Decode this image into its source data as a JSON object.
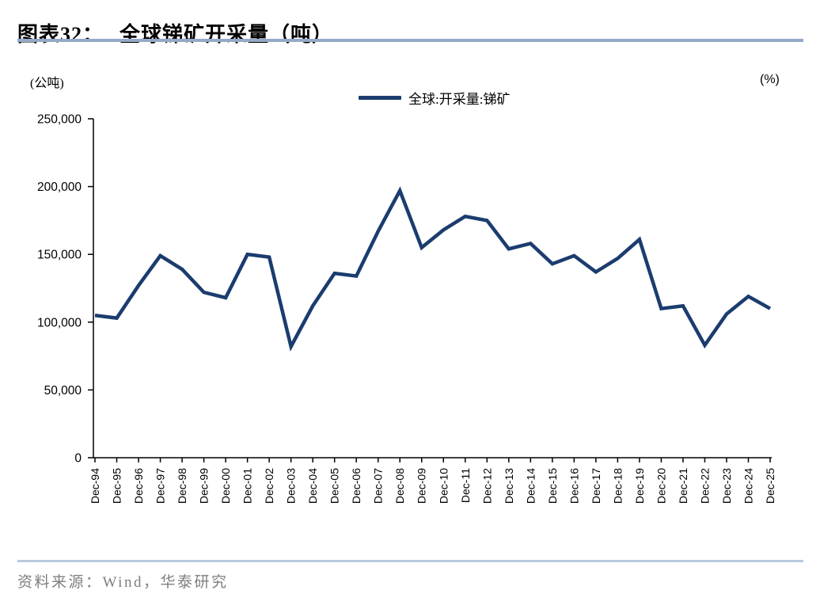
{
  "header": {
    "title_prefix": "图表32：",
    "title_text": "全球锑矿开采量（吨）"
  },
  "colors": {
    "series_line": "#1B3C6E",
    "title_rule": "#94AAC8",
    "footer_rule": "#B7C9DE",
    "source_text": "#7f7f7f"
  },
  "chart": {
    "unit_left": "(公吨)",
    "unit_right": "(%)",
    "legend_label": "全球:开采量:锑矿"
  },
  "chart_data": {
    "type": "line",
    "title": "全球锑矿开采量（吨）",
    "ylabel": "(公吨)",
    "y2label": "(%)",
    "xlabel": "",
    "grid": false,
    "legend_position": "top-center",
    "ylim": [
      0,
      250000
    ],
    "yticks": [
      0,
      50000,
      100000,
      150000,
      200000,
      250000
    ],
    "categories": [
      "Dec-94",
      "Dec-95",
      "Dec-96",
      "Dec-97",
      "Dec-98",
      "Dec-99",
      "Dec-00",
      "Dec-01",
      "Dec-02",
      "Dec-03",
      "Dec-04",
      "Dec-05",
      "Dec-06",
      "Dec-07",
      "Dec-08",
      "Dec-09",
      "Dec-10",
      "Dec-11",
      "Dec-12",
      "Dec-13",
      "Dec-14",
      "Dec-15",
      "Dec-16",
      "Dec-17",
      "Dec-18",
      "Dec-19",
      "Dec-20",
      "Dec-21",
      "Dec-22",
      "Dec-23",
      "Dec-24",
      "Dec-25"
    ],
    "series": [
      {
        "name": "全球:开采量:锑矿",
        "color": "#1B3C6E",
        "values": [
          105000,
          103000,
          127000,
          149000,
          139000,
          122000,
          118000,
          150000,
          148000,
          82000,
          112000,
          136000,
          134000,
          167000,
          197000,
          155000,
          168000,
          178000,
          175000,
          154000,
          158000,
          143000,
          149000,
          137000,
          147000,
          161000,
          110000,
          112000,
          83000,
          106000,
          119000,
          110000
        ]
      }
    ]
  },
  "footer": {
    "source": "资料来源：Wind，华泰研究"
  }
}
